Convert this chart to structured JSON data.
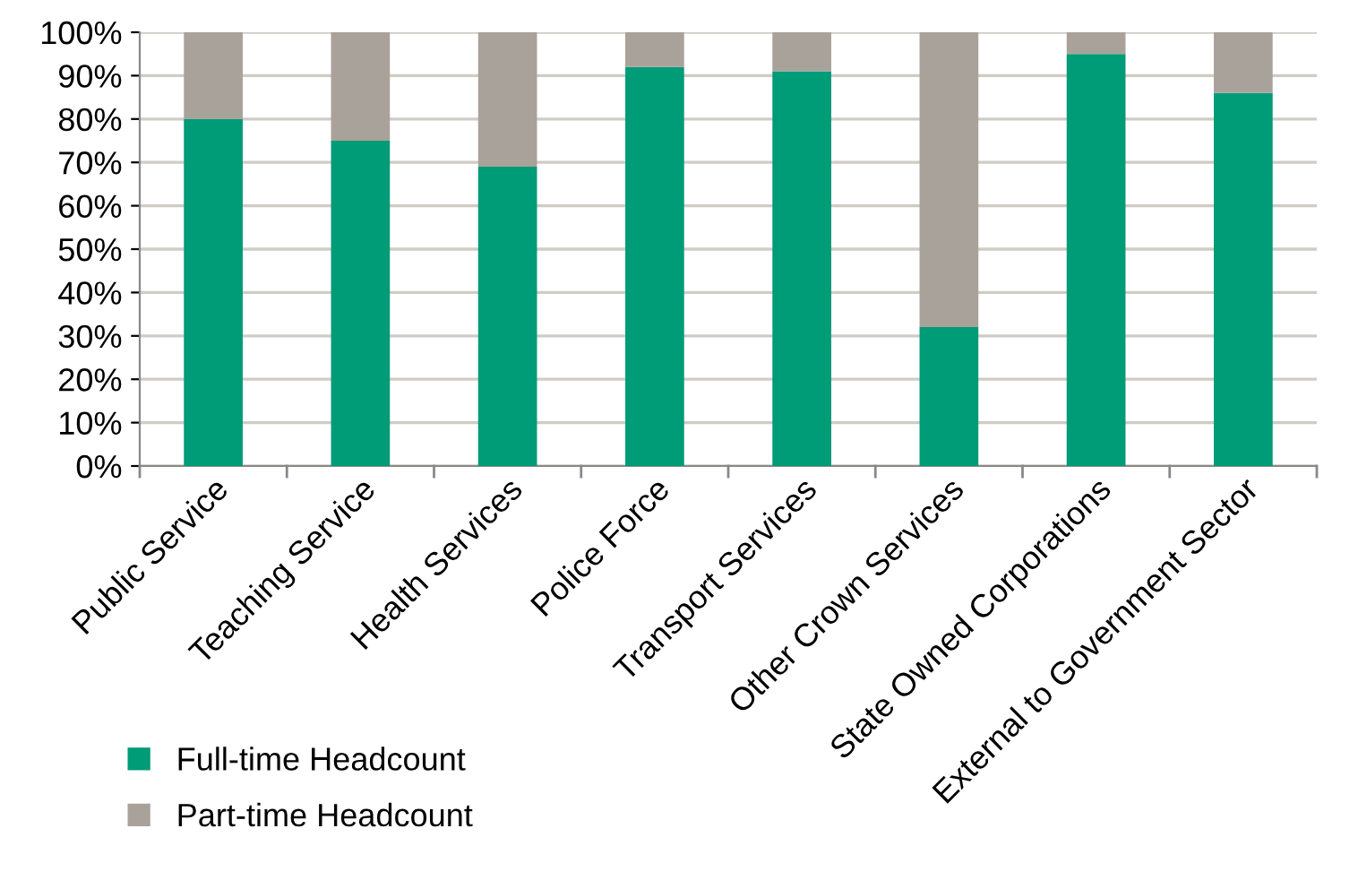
{
  "chart_data": {
    "type": "bar",
    "stacked": true,
    "categories": [
      "Public Service",
      "Teaching Service",
      "Health Services",
      "Police Force",
      "Transport Services",
      "Other Crown Services",
      "State Owned Corporations",
      "External to Government Sector"
    ],
    "series": [
      {
        "name": "Full-time Headcount",
        "color": "#009b77",
        "values": [
          80,
          75,
          69,
          92,
          91,
          32,
          95,
          86
        ]
      },
      {
        "name": "Part-time Headcount",
        "color": "#a9a29b",
        "values": [
          20,
          25,
          31,
          8,
          9,
          68,
          5,
          14
        ]
      }
    ],
    "ylim": [
      0,
      100
    ],
    "yticks": [
      {
        "value": 0,
        "label": "0%"
      },
      {
        "value": 10,
        "label": "10%"
      },
      {
        "value": 20,
        "label": "20%"
      },
      {
        "value": 30,
        "label": "30%"
      },
      {
        "value": 40,
        "label": "40%"
      },
      {
        "value": 50,
        "label": "50%"
      },
      {
        "value": 60,
        "label": "60%"
      },
      {
        "value": 70,
        "label": "70%"
      },
      {
        "value": 80,
        "label": "80%"
      },
      {
        "value": 90,
        "label": "90%"
      },
      {
        "value": 100,
        "label": "100%"
      }
    ],
    "grid": "y",
    "legend": "bottom left"
  }
}
